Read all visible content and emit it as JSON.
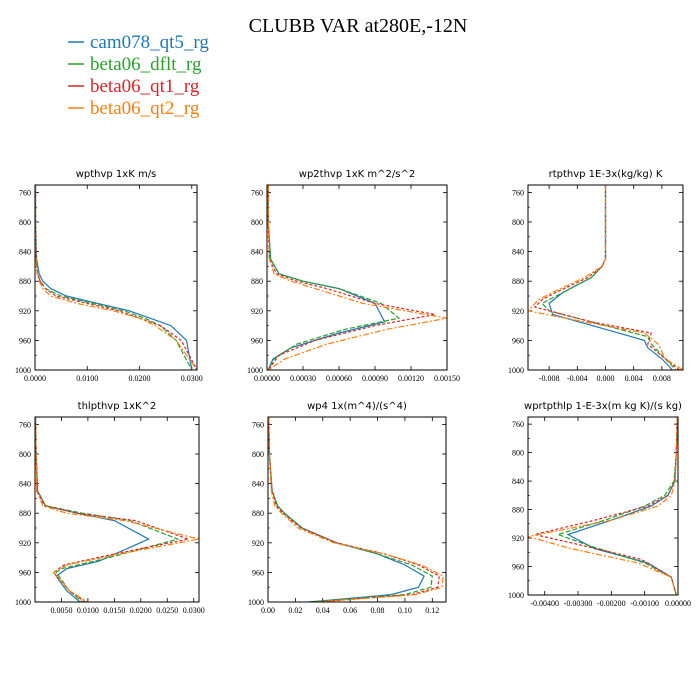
{
  "figure": {
    "title": "CLUBB VAR at280E,-12N"
  },
  "legend": {
    "placement": "top-left",
    "entries": [
      {
        "name": "cam078_qt5_rg",
        "color": "#1f77b4"
      },
      {
        "name": "beta06_dflt_rg",
        "color": "#2ca02c"
      },
      {
        "name": "beta06_qt1_rg",
        "color": "#d62728"
      },
      {
        "name": "beta06_qt2_rg",
        "color": "#ff7f0e"
      }
    ]
  },
  "chart_data": [
    {
      "type": "line",
      "title": "wpthvp  1xK m/s",
      "xlim": [
        0,
        0.031
      ],
      "ylim": [
        750,
        1000
      ],
      "xticks": [
        0,
        0.01,
        0.02,
        0.03
      ],
      "xtick_labels": [
        "0.0000",
        "0.0100",
        "0.0200",
        "0.0300"
      ],
      "yticks": [
        760,
        800,
        840,
        880,
        920,
        960,
        1000
      ],
      "series": [
        {
          "name": "cam078_qt5_rg",
          "x": [
            0.0001,
            0.0001,
            0.0003,
            0.0008,
            0.0015,
            0.003,
            0.006,
            0.012,
            0.018,
            0.022,
            0.026,
            0.029,
            0.03
          ],
          "y": [
            750,
            800,
            850,
            870,
            880,
            890,
            900,
            910,
            920,
            930,
            940,
            960,
            1000
          ]
        },
        {
          "name": "beta06_dflt_rg",
          "x": [
            0.0001,
            0.0001,
            0.0002,
            0.0005,
            0.001,
            0.002,
            0.005,
            0.011,
            0.017,
            0.021,
            0.024,
            0.027,
            0.03
          ],
          "y": [
            750,
            800,
            850,
            870,
            880,
            890,
            900,
            910,
            920,
            930,
            940,
            960,
            1000
          ]
        },
        {
          "name": "beta06_qt1_rg",
          "x": [
            0.0001,
            0.0001,
            0.0002,
            0.0005,
            0.001,
            0.002,
            0.004,
            0.01,
            0.016,
            0.02,
            0.024,
            0.028,
            0.031
          ],
          "y": [
            750,
            800,
            850,
            870,
            880,
            890,
            900,
            910,
            920,
            930,
            940,
            960,
            1000
          ]
        },
        {
          "name": "beta06_qt2_rg",
          "x": [
            0.0001,
            0.0001,
            0.0002,
            0.0004,
            0.0008,
            0.0015,
            0.003,
            0.008,
            0.015,
            0.02,
            0.023,
            0.027,
            0.031
          ],
          "y": [
            750,
            800,
            850,
            870,
            880,
            890,
            900,
            910,
            920,
            930,
            940,
            960,
            1000
          ]
        }
      ]
    },
    {
      "type": "line",
      "title": "wp2thvp  1xK m^2/s^2",
      "xlim": [
        0,
        0.0015
      ],
      "ylim": [
        750,
        1000
      ],
      "xticks": [
        0,
        0.0003,
        0.0006,
        0.0009,
        0.0012,
        0.0015
      ],
      "xtick_labels": [
        "0.00000",
        "0.00030",
        "0.00060",
        "0.00090",
        "0.00120",
        "0.00150"
      ],
      "yticks": [
        760,
        800,
        840,
        880,
        920,
        960,
        1000
      ],
      "series": [
        {
          "name": "cam078_qt5_rg",
          "x": [
            1e-05,
            1e-05,
            3e-05,
            0.0001,
            0.0003,
            0.0006,
            0.0009,
            0.00098,
            0.0006,
            0.0002,
            5e-05,
            1e-05
          ],
          "y": [
            750,
            800,
            850,
            870,
            880,
            890,
            910,
            935,
            950,
            970,
            985,
            1000
          ]
        },
        {
          "name": "beta06_dflt_rg",
          "x": [
            1e-05,
            1e-05,
            3e-05,
            0.0001,
            0.0003,
            0.0006,
            0.00095,
            0.0011,
            0.00065,
            0.00025,
            6e-05,
            1e-05
          ],
          "y": [
            750,
            800,
            850,
            870,
            880,
            890,
            910,
            930,
            945,
            965,
            985,
            1000
          ]
        },
        {
          "name": "beta06_qt1_rg",
          "x": [
            1e-05,
            1e-05,
            2e-05,
            8e-05,
            0.00025,
            0.0005,
            0.0009,
            0.0014,
            0.0009,
            0.0004,
            0.0001,
            1e-05
          ],
          "y": [
            750,
            800,
            850,
            870,
            880,
            890,
            910,
            925,
            940,
            960,
            980,
            1000
          ]
        },
        {
          "name": "beta06_qt2_rg",
          "x": [
            1e-05,
            1e-05,
            2e-05,
            6e-05,
            0.0002,
            0.0004,
            0.0008,
            0.0015,
            0.001,
            0.0005,
            0.00015,
            1e-05
          ],
          "y": [
            750,
            800,
            850,
            870,
            880,
            890,
            910,
            930,
            945,
            965,
            985,
            1000
          ]
        }
      ]
    },
    {
      "type": "line",
      "title": "rtpthvp  1E-3x(kg/kg) K",
      "xlim": [
        -0.011,
        0.011
      ],
      "ylim": [
        750,
        1000
      ],
      "xticks": [
        -0.008,
        -0.004,
        0.0,
        0.004,
        0.008
      ],
      "xtick_labels": [
        "-0.008",
        "-0.004",
        "0.000",
        "0.004",
        "0.008"
      ],
      "yticks": [
        760,
        800,
        840,
        880,
        920,
        960,
        1000
      ],
      "series": [
        {
          "name": "cam078_qt5_rg",
          "x": [
            0.0,
            0.0,
            0.0,
            -0.0005,
            -0.002,
            -0.006,
            -0.008,
            -0.0075,
            0.0,
            0.0055,
            0.006,
            0.008,
            0.0095
          ],
          "y": [
            750,
            800,
            850,
            860,
            875,
            895,
            910,
            925,
            945,
            960,
            970,
            985,
            1000
          ]
        },
        {
          "name": "beta06_dflt_rg",
          "x": [
            0.0,
            0.0,
            0.0,
            -0.0005,
            -0.002,
            -0.006,
            -0.009,
            -0.008,
            0.0,
            0.006,
            0.0065,
            0.0085,
            0.01
          ],
          "y": [
            750,
            800,
            850,
            860,
            875,
            895,
            910,
            920,
            940,
            955,
            965,
            985,
            1000
          ]
        },
        {
          "name": "beta06_qt1_rg",
          "x": [
            0.0,
            0.0,
            0.0,
            -0.0005,
            -0.0025,
            -0.007,
            -0.009,
            -0.01,
            -0.002,
            0.0065,
            0.006,
            0.0085,
            0.0105
          ],
          "y": [
            750,
            800,
            850,
            860,
            875,
            895,
            905,
            915,
            935,
            950,
            965,
            985,
            1000
          ]
        },
        {
          "name": "beta06_qt2_rg",
          "x": [
            0.0,
            0.0,
            0.0,
            -0.0005,
            -0.003,
            -0.0075,
            -0.0095,
            -0.011,
            -0.003,
            0.0055,
            0.0075,
            0.0085,
            0.011
          ],
          "y": [
            750,
            800,
            850,
            860,
            875,
            895,
            905,
            920,
            935,
            950,
            965,
            985,
            1000
          ]
        }
      ]
    },
    {
      "type": "line",
      "title": "thlpthvp  1xK^2",
      "xlim": [
        0,
        0.031
      ],
      "ylim": [
        750,
        1000
      ],
      "xticks": [
        0.005,
        0.01,
        0.015,
        0.02,
        0.025,
        0.03
      ],
      "xtick_labels": [
        "0.0050",
        "0.0100",
        "0.0150",
        "0.0200",
        "0.0250",
        "0.0300"
      ],
      "yticks": [
        760,
        800,
        840,
        880,
        920,
        960,
        1000
      ],
      "series": [
        {
          "name": "cam078_qt5_rg",
          "x": [
            0.0001,
            0.0002,
            0.0005,
            0.002,
            0.008,
            0.015,
            0.0215,
            0.012,
            0.006,
            0.004,
            0.006,
            0.0085
          ],
          "y": [
            750,
            800,
            850,
            870,
            880,
            890,
            915,
            945,
            955,
            965,
            985,
            1000
          ]
        },
        {
          "name": "beta06_dflt_rg",
          "x": [
            0.0001,
            0.0002,
            0.0005,
            0.002,
            0.009,
            0.018,
            0.027,
            0.014,
            0.005,
            0.004,
            0.0065,
            0.009
          ],
          "y": [
            750,
            800,
            850,
            870,
            880,
            890,
            915,
            940,
            955,
            960,
            985,
            1000
          ]
        },
        {
          "name": "beta06_qt1_rg",
          "x": [
            0.0001,
            0.0002,
            0.0004,
            0.0018,
            0.008,
            0.019,
            0.029,
            0.015,
            0.0055,
            0.0035,
            0.0065,
            0.0095
          ],
          "y": [
            750,
            800,
            850,
            870,
            880,
            890,
            915,
            935,
            950,
            960,
            985,
            1000
          ]
        },
        {
          "name": "beta06_qt2_rg",
          "x": [
            0.0001,
            0.0002,
            0.0003,
            0.0015,
            0.006,
            0.017,
            0.031,
            0.016,
            0.006,
            0.0035,
            0.0065,
            0.01
          ],
          "y": [
            750,
            800,
            850,
            870,
            880,
            890,
            915,
            935,
            950,
            960,
            985,
            1000
          ]
        }
      ]
    },
    {
      "type": "line",
      "title": "wp4  1x(m^4)/(s^4)",
      "xlim": [
        0,
        0.13
      ],
      "ylim": [
        750,
        1000
      ],
      "xticks": [
        0,
        0.02,
        0.04,
        0.06,
        0.08,
        0.1,
        0.12
      ],
      "xtick_labels": [
        "0.00",
        "0.02",
        "0.04",
        "0.06",
        "0.08",
        "0.10",
        "0.12"
      ],
      "yticks": [
        760,
        800,
        840,
        880,
        920,
        960,
        1000
      ],
      "series": [
        {
          "name": "cam078_qt5_rg",
          "x": [
            0.0005,
            0.001,
            0.003,
            0.007,
            0.012,
            0.025,
            0.05,
            0.08,
            0.1,
            0.114,
            0.11,
            0.09,
            0.03
          ],
          "y": [
            750,
            800,
            850,
            870,
            880,
            900,
            920,
            935,
            950,
            965,
            980,
            990,
            1000
          ]
        },
        {
          "name": "beta06_dflt_rg",
          "x": [
            0.0005,
            0.001,
            0.003,
            0.007,
            0.012,
            0.025,
            0.05,
            0.08,
            0.105,
            0.12,
            0.119,
            0.1,
            0.03
          ],
          "y": [
            750,
            800,
            850,
            870,
            880,
            900,
            920,
            935,
            950,
            965,
            980,
            990,
            1000
          ]
        },
        {
          "name": "beta06_qt1_rg",
          "x": [
            0.0005,
            0.001,
            0.003,
            0.006,
            0.011,
            0.024,
            0.05,
            0.085,
            0.11,
            0.125,
            0.124,
            0.105,
            0.035
          ],
          "y": [
            750,
            800,
            850,
            870,
            880,
            900,
            920,
            935,
            950,
            965,
            980,
            990,
            1000
          ]
        },
        {
          "name": "beta06_qt2_rg",
          "x": [
            0.0005,
            0.001,
            0.0025,
            0.005,
            0.01,
            0.022,
            0.048,
            0.085,
            0.112,
            0.128,
            0.127,
            0.108,
            0.035
          ],
          "y": [
            750,
            800,
            850,
            870,
            880,
            900,
            920,
            935,
            950,
            965,
            980,
            990,
            1000
          ]
        }
      ]
    },
    {
      "type": "line",
      "title": "wprtpthlp  1-E-3x(m kg K)/(s kg)",
      "xlim": [
        -0.0045,
        0.0
      ],
      "ylim": [
        750,
        1000
      ],
      "xticks": [
        -0.004,
        -0.003,
        -0.002,
        -0.001,
        0.0
      ],
      "xtick_labels": [
        "-0.00400",
        "-0.00300",
        "-0.00200",
        "-0.00100",
        "0.00000"
      ],
      "yticks": [
        760,
        800,
        840,
        880,
        920,
        960,
        1000
      ],
      "series": [
        {
          "name": "cam078_qt5_rg",
          "x": [
            -2e-05,
            -5e-05,
            -0.0001,
            -0.0003,
            -0.0008,
            -0.002,
            -0.0033,
            -0.0025,
            -0.0009,
            -0.0002,
            -5e-05
          ],
          "y": [
            750,
            800,
            840,
            860,
            875,
            895,
            915,
            935,
            955,
            975,
            1000
          ]
        },
        {
          "name": "beta06_dflt_rg",
          "x": [
            -2e-05,
            -5e-05,
            -0.00012,
            -0.0004,
            -0.001,
            -0.0022,
            -0.0036,
            -0.0027,
            -0.001,
            -0.0002,
            -5e-05
          ],
          "y": [
            750,
            800,
            840,
            860,
            875,
            895,
            915,
            930,
            955,
            975,
            1000
          ]
        },
        {
          "name": "beta06_qt1_rg",
          "x": [
            -2e-05,
            -5e-05,
            -0.0001,
            -0.0003,
            -0.0009,
            -0.0025,
            -0.0043,
            -0.0029,
            -0.0011,
            -0.0002,
            -5e-05
          ],
          "y": [
            750,
            800,
            840,
            860,
            875,
            895,
            915,
            930,
            950,
            975,
            1000
          ]
        },
        {
          "name": "beta06_qt2_rg",
          "x": [
            -2e-05,
            -5e-05,
            -8e-05,
            -0.0002,
            -0.0006,
            -0.002,
            -0.0045,
            -0.0032,
            -0.0012,
            -0.0002,
            -5e-05
          ],
          "y": [
            750,
            800,
            840,
            860,
            875,
            895,
            918,
            935,
            955,
            975,
            1000
          ]
        }
      ]
    }
  ]
}
